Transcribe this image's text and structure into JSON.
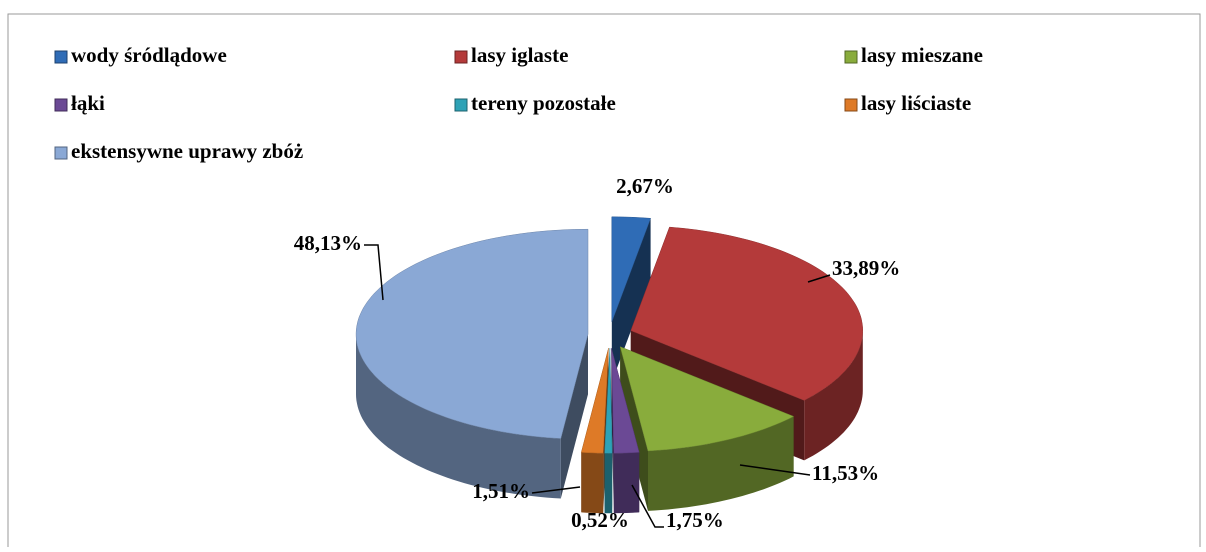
{
  "chart_data": {
    "type": "pie",
    "categories": [
      "wody śródlądowe",
      "lasy iglaste",
      "lasy mieszane",
      "łąki",
      "tereny pozostałe",
      "lasy liściaste",
      "ekstensywne uprawy zbóż"
    ],
    "values": [
      2.67,
      33.89,
      11.53,
      1.75,
      0.52,
      1.51,
      48.13
    ],
    "value_labels": [
      "2,67%",
      "33,89%",
      "11,53%",
      "1,75%",
      "0,52%",
      "1,51%",
      "48,13%"
    ],
    "colors": [
      "#2f6cb6",
      "#b43a3a",
      "#89ac3c",
      "#6b4995",
      "#2ea2b6",
      "#de7a27",
      "#8aa8d5"
    ]
  }
}
